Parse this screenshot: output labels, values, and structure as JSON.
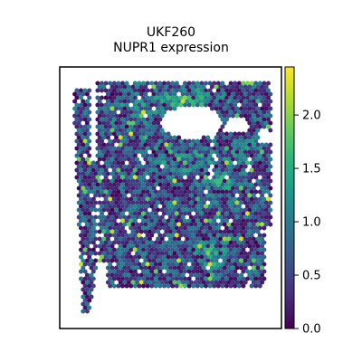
{
  "chart_data": {
    "type": "heatmap",
    "subtype": "spatial-spot-scatter",
    "title_lines": [
      "UKF260",
      "NUPR1 expression"
    ],
    "xlabel": "",
    "ylabel": "",
    "colormap": "viridis",
    "colorbar": {
      "range": [
        0.0,
        2.45
      ],
      "ticks": [
        0.0,
        0.5,
        1.0,
        1.5,
        2.0
      ],
      "tick_labels": [
        "0.0",
        "0.5",
        "1.0",
        "1.5",
        "2.0"
      ],
      "placement": "right"
    },
    "value_range": [
      0.0,
      2.45
    ],
    "grid": false,
    "axes_ticks": false
  }
}
